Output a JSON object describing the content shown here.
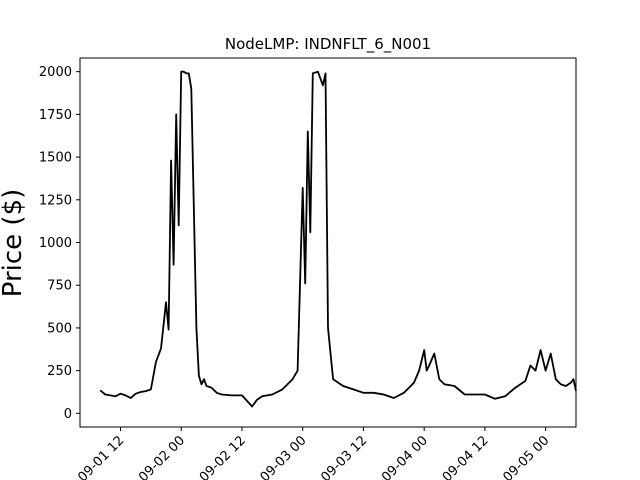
{
  "chart_data": {
    "type": "line",
    "title": "NodeLMP: INDNFLT_6_N001",
    "xlabel": "",
    "ylabel": "Price ($)",
    "ylim": [
      -80,
      2080
    ],
    "xlim": [
      "2025-09-01 04:00",
      "2025-09-05 06:00"
    ],
    "grid": false,
    "legend": "none",
    "line_color": "#000000",
    "y_ticks": [
      0,
      250,
      500,
      750,
      1000,
      1250,
      1500,
      1750,
      2000
    ],
    "y_tick_labels": [
      "0",
      "250",
      "500",
      "750",
      "1000",
      "1250",
      "1500",
      "1750",
      "2000"
    ],
    "x_ticks": [
      "2025-09-01 12:00",
      "2025-09-02 00:00",
      "2025-09-02 12:00",
      "2025-09-03 00:00",
      "2025-09-03 12:00",
      "2025-09-04 00:00",
      "2025-09-04 12:00",
      "2025-09-05 00:00"
    ],
    "x_tick_labels": [
      "09-01 12",
      "09-02 00",
      "09-02 12",
      "09-03 00",
      "09-03 12",
      "09-04 00",
      "09-04 12",
      "09-05 00"
    ],
    "series": [
      {
        "x": [
          "2025-09-01 08:00",
          "2025-09-01 09:00",
          "2025-09-01 10:00",
          "2025-09-01 11:00",
          "2025-09-01 12:00",
          "2025-09-01 13:00",
          "2025-09-01 14:00",
          "2025-09-01 15:00",
          "2025-09-01 16:00",
          "2025-09-01 17:00",
          "2025-09-01 18:00",
          "2025-09-01 19:00",
          "2025-09-01 20:00",
          "2025-09-01 21:00",
          "2025-09-01 21:30",
          "2025-09-01 22:00",
          "2025-09-01 22:30",
          "2025-09-01 23:00",
          "2025-09-01 23:30",
          "2025-09-02 00:00",
          "2025-09-02 00:30",
          "2025-09-02 01:00",
          "2025-09-02 01:30",
          "2025-09-02 02:00",
          "2025-09-02 03:00",
          "2025-09-02 03:30",
          "2025-09-02 04:00",
          "2025-09-02 04:30",
          "2025-09-02 05:00",
          "2025-09-02 06:00",
          "2025-09-02 07:00",
          "2025-09-02 08:00",
          "2025-09-02 10:00",
          "2025-09-02 12:00",
          "2025-09-02 14:00",
          "2025-09-02 15:00",
          "2025-09-02 16:00",
          "2025-09-02 18:00",
          "2025-09-02 20:00",
          "2025-09-02 22:00",
          "2025-09-02 23:00",
          "2025-09-03 00:00",
          "2025-09-03 00:30",
          "2025-09-03 01:00",
          "2025-09-03 01:30",
          "2025-09-03 02:00",
          "2025-09-03 03:00",
          "2025-09-03 04:00",
          "2025-09-03 04:30",
          "2025-09-03 05:00",
          "2025-09-03 06:00",
          "2025-09-03 07:00",
          "2025-09-03 08:00",
          "2025-09-03 10:00",
          "2025-09-03 12:00",
          "2025-09-03 14:00",
          "2025-09-03 16:00",
          "2025-09-03 18:00",
          "2025-09-03 20:00",
          "2025-09-03 21:00",
          "2025-09-03 22:00",
          "2025-09-03 23:00",
          "2025-09-04 00:00",
          "2025-09-04 00:30",
          "2025-09-04 01:00",
          "2025-09-04 02:00",
          "2025-09-04 03:00",
          "2025-09-04 04:00",
          "2025-09-04 06:00",
          "2025-09-04 08:00",
          "2025-09-04 12:00",
          "2025-09-04 14:00",
          "2025-09-04 16:00",
          "2025-09-04 18:00",
          "2025-09-04 20:00",
          "2025-09-04 21:00",
          "2025-09-04 22:00",
          "2025-09-04 23:00",
          "2025-09-05 00:00",
          "2025-09-05 00:30",
          "2025-09-05 01:00",
          "2025-09-05 02:00",
          "2025-09-05 03:00",
          "2025-09-05 04:00",
          "2025-09-05 05:00",
          "2025-09-05 05:30",
          "2025-09-05 06:00"
        ],
        "y": [
          135,
          110,
          105,
          100,
          115,
          105,
          90,
          115,
          125,
          130,
          140,
          300,
          380,
          650,
          490,
          1480,
          870,
          1750,
          1100,
          2000,
          2000,
          1990,
          1990,
          1900,
          500,
          220,
          170,
          200,
          160,
          150,
          120,
          110,
          105,
          105,
          40,
          80,
          100,
          110,
          140,
          200,
          250,
          1320,
          760,
          1650,
          1060,
          1990,
          2000,
          1920,
          1990,
          500,
          200,
          180,
          160,
          140,
          120,
          120,
          110,
          90,
          120,
          150,
          180,
          250,
          370,
          250,
          280,
          350,
          200,
          170,
          160,
          110,
          110,
          85,
          100,
          150,
          190,
          280,
          250,
          370,
          250,
          300,
          350,
          200,
          170,
          160,
          180,
          200,
          130
        ]
      }
    ]
  }
}
